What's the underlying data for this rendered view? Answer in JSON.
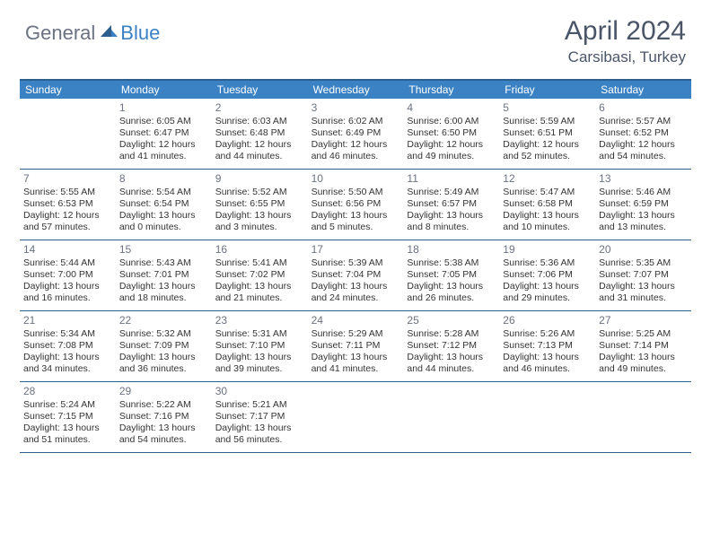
{
  "logo": {
    "general": "General",
    "blue": "Blue"
  },
  "header": {
    "month": "April 2024",
    "location": "Carsibasi, Turkey"
  },
  "colors": {
    "header_bg": "#3b82c4",
    "border": "#2d5f8e",
    "text": "#333333",
    "muted": "#6b7280",
    "logo_gray": "#6b7280",
    "logo_blue": "#3b82c4",
    "bg": "#ffffff"
  },
  "weekdays": [
    "Sunday",
    "Monday",
    "Tuesday",
    "Wednesday",
    "Thursday",
    "Friday",
    "Saturday"
  ],
  "weeks": [
    [
      null,
      {
        "n": "1",
        "sr": "Sunrise: 6:05 AM",
        "ss": "Sunset: 6:47 PM",
        "d1": "Daylight: 12 hours",
        "d2": "and 41 minutes."
      },
      {
        "n": "2",
        "sr": "Sunrise: 6:03 AM",
        "ss": "Sunset: 6:48 PM",
        "d1": "Daylight: 12 hours",
        "d2": "and 44 minutes."
      },
      {
        "n": "3",
        "sr": "Sunrise: 6:02 AM",
        "ss": "Sunset: 6:49 PM",
        "d1": "Daylight: 12 hours",
        "d2": "and 46 minutes."
      },
      {
        "n": "4",
        "sr": "Sunrise: 6:00 AM",
        "ss": "Sunset: 6:50 PM",
        "d1": "Daylight: 12 hours",
        "d2": "and 49 minutes."
      },
      {
        "n": "5",
        "sr": "Sunrise: 5:59 AM",
        "ss": "Sunset: 6:51 PM",
        "d1": "Daylight: 12 hours",
        "d2": "and 52 minutes."
      },
      {
        "n": "6",
        "sr": "Sunrise: 5:57 AM",
        "ss": "Sunset: 6:52 PM",
        "d1": "Daylight: 12 hours",
        "d2": "and 54 minutes."
      }
    ],
    [
      {
        "n": "7",
        "sr": "Sunrise: 5:55 AM",
        "ss": "Sunset: 6:53 PM",
        "d1": "Daylight: 12 hours",
        "d2": "and 57 minutes."
      },
      {
        "n": "8",
        "sr": "Sunrise: 5:54 AM",
        "ss": "Sunset: 6:54 PM",
        "d1": "Daylight: 13 hours",
        "d2": "and 0 minutes."
      },
      {
        "n": "9",
        "sr": "Sunrise: 5:52 AM",
        "ss": "Sunset: 6:55 PM",
        "d1": "Daylight: 13 hours",
        "d2": "and 3 minutes."
      },
      {
        "n": "10",
        "sr": "Sunrise: 5:50 AM",
        "ss": "Sunset: 6:56 PM",
        "d1": "Daylight: 13 hours",
        "d2": "and 5 minutes."
      },
      {
        "n": "11",
        "sr": "Sunrise: 5:49 AM",
        "ss": "Sunset: 6:57 PM",
        "d1": "Daylight: 13 hours",
        "d2": "and 8 minutes."
      },
      {
        "n": "12",
        "sr": "Sunrise: 5:47 AM",
        "ss": "Sunset: 6:58 PM",
        "d1": "Daylight: 13 hours",
        "d2": "and 10 minutes."
      },
      {
        "n": "13",
        "sr": "Sunrise: 5:46 AM",
        "ss": "Sunset: 6:59 PM",
        "d1": "Daylight: 13 hours",
        "d2": "and 13 minutes."
      }
    ],
    [
      {
        "n": "14",
        "sr": "Sunrise: 5:44 AM",
        "ss": "Sunset: 7:00 PM",
        "d1": "Daylight: 13 hours",
        "d2": "and 16 minutes."
      },
      {
        "n": "15",
        "sr": "Sunrise: 5:43 AM",
        "ss": "Sunset: 7:01 PM",
        "d1": "Daylight: 13 hours",
        "d2": "and 18 minutes."
      },
      {
        "n": "16",
        "sr": "Sunrise: 5:41 AM",
        "ss": "Sunset: 7:02 PM",
        "d1": "Daylight: 13 hours",
        "d2": "and 21 minutes."
      },
      {
        "n": "17",
        "sr": "Sunrise: 5:39 AM",
        "ss": "Sunset: 7:04 PM",
        "d1": "Daylight: 13 hours",
        "d2": "and 24 minutes."
      },
      {
        "n": "18",
        "sr": "Sunrise: 5:38 AM",
        "ss": "Sunset: 7:05 PM",
        "d1": "Daylight: 13 hours",
        "d2": "and 26 minutes."
      },
      {
        "n": "19",
        "sr": "Sunrise: 5:36 AM",
        "ss": "Sunset: 7:06 PM",
        "d1": "Daylight: 13 hours",
        "d2": "and 29 minutes."
      },
      {
        "n": "20",
        "sr": "Sunrise: 5:35 AM",
        "ss": "Sunset: 7:07 PM",
        "d1": "Daylight: 13 hours",
        "d2": "and 31 minutes."
      }
    ],
    [
      {
        "n": "21",
        "sr": "Sunrise: 5:34 AM",
        "ss": "Sunset: 7:08 PM",
        "d1": "Daylight: 13 hours",
        "d2": "and 34 minutes."
      },
      {
        "n": "22",
        "sr": "Sunrise: 5:32 AM",
        "ss": "Sunset: 7:09 PM",
        "d1": "Daylight: 13 hours",
        "d2": "and 36 minutes."
      },
      {
        "n": "23",
        "sr": "Sunrise: 5:31 AM",
        "ss": "Sunset: 7:10 PM",
        "d1": "Daylight: 13 hours",
        "d2": "and 39 minutes."
      },
      {
        "n": "24",
        "sr": "Sunrise: 5:29 AM",
        "ss": "Sunset: 7:11 PM",
        "d1": "Daylight: 13 hours",
        "d2": "and 41 minutes."
      },
      {
        "n": "25",
        "sr": "Sunrise: 5:28 AM",
        "ss": "Sunset: 7:12 PM",
        "d1": "Daylight: 13 hours",
        "d2": "and 44 minutes."
      },
      {
        "n": "26",
        "sr": "Sunrise: 5:26 AM",
        "ss": "Sunset: 7:13 PM",
        "d1": "Daylight: 13 hours",
        "d2": "and 46 minutes."
      },
      {
        "n": "27",
        "sr": "Sunrise: 5:25 AM",
        "ss": "Sunset: 7:14 PM",
        "d1": "Daylight: 13 hours",
        "d2": "and 49 minutes."
      }
    ],
    [
      {
        "n": "28",
        "sr": "Sunrise: 5:24 AM",
        "ss": "Sunset: 7:15 PM",
        "d1": "Daylight: 13 hours",
        "d2": "and 51 minutes."
      },
      {
        "n": "29",
        "sr": "Sunrise: 5:22 AM",
        "ss": "Sunset: 7:16 PM",
        "d1": "Daylight: 13 hours",
        "d2": "and 54 minutes."
      },
      {
        "n": "30",
        "sr": "Sunrise: 5:21 AM",
        "ss": "Sunset: 7:17 PM",
        "d1": "Daylight: 13 hours",
        "d2": "and 56 minutes."
      },
      null,
      null,
      null,
      null
    ]
  ]
}
